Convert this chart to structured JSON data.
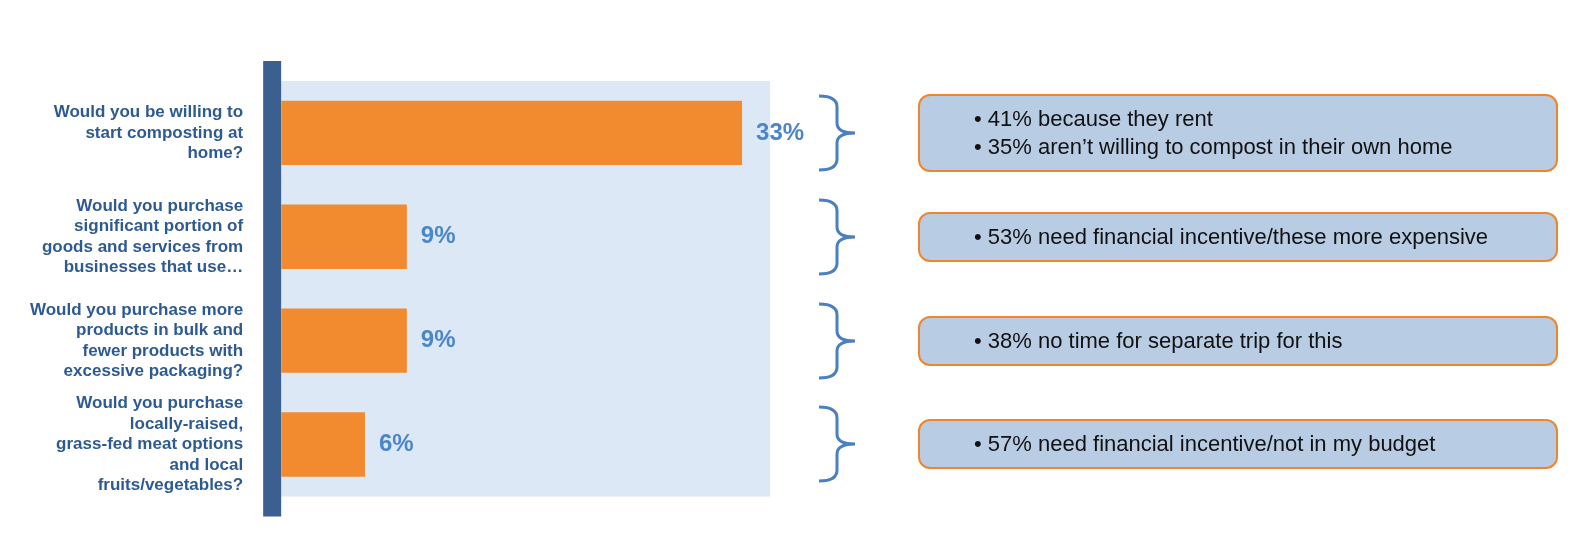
{
  "chart_data": {
    "type": "bar",
    "orientation": "horizontal",
    "categories": [
      "Would you be willing to start composting at home?",
      "Would you purchase significant portion of goods and services from businesses that use…",
      "Would you purchase more products in bulk and fewer products with excessive packaging?",
      "Would you purchase locally-raised, grass-fed meat options and local fruits/vegetables?"
    ],
    "values": [
      33,
      9,
      9,
      6
    ],
    "color": "#f28a30",
    "value_labels": [
      "33%",
      "9%",
      "9%",
      "6%"
    ],
    "tick_labels": "y",
    "legend": false,
    "annotations": [
      "• 41% because they rent",
      "• 35% aren’t willing to compost in their own home",
      "• 53% need financial incentive/these more expensive",
      "• 38% no time for separate trip for this",
      "• 57% need financial incentive/not in my budget"
    ]
  }
}
